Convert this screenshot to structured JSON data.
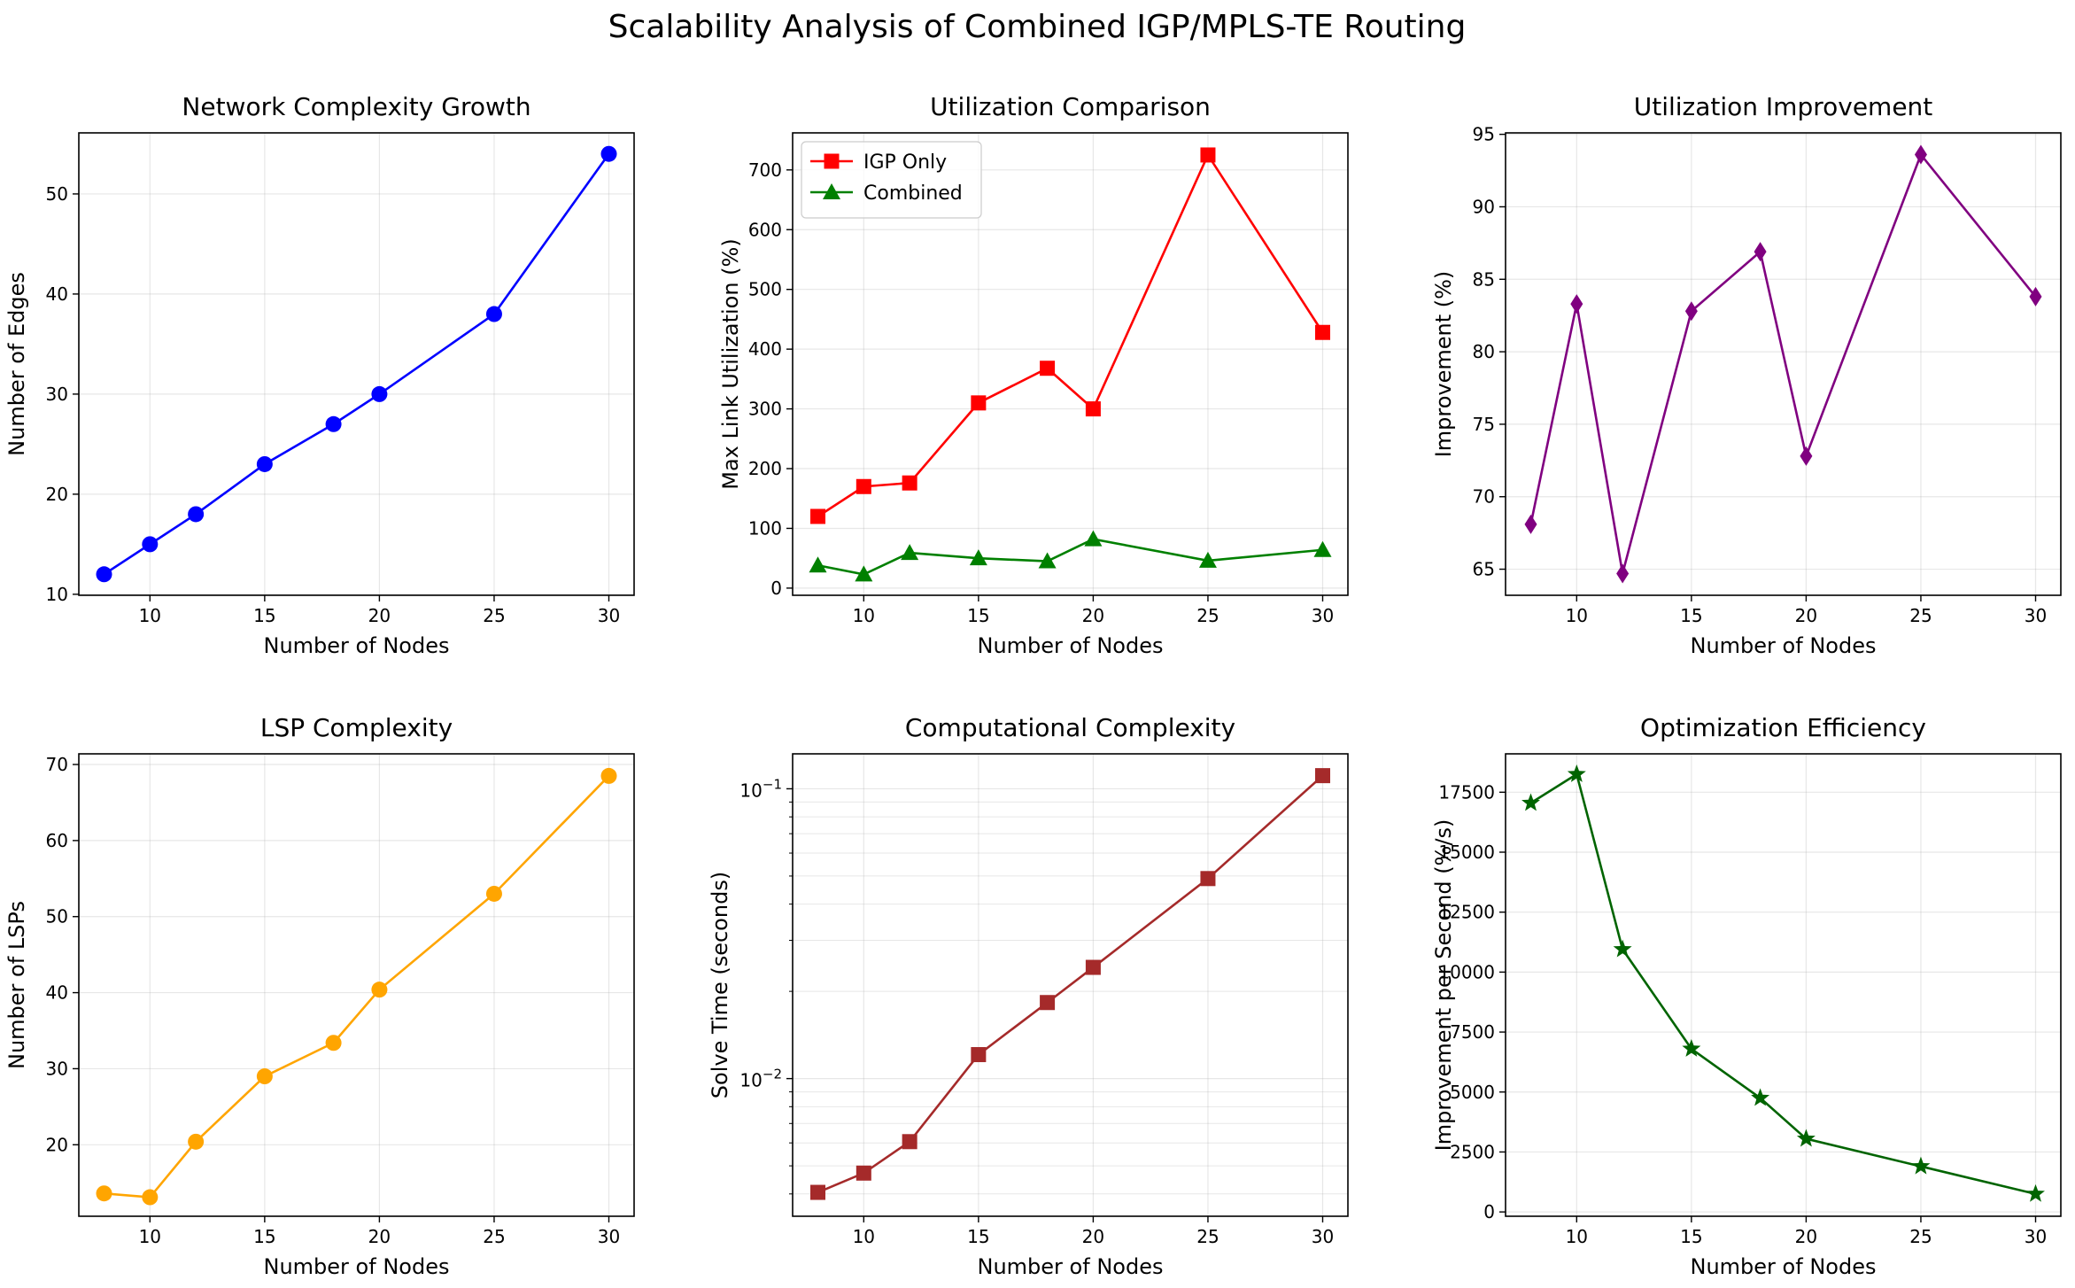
{
  "figure_title": "Scalability Analysis of Combined IGP/MPLS-TE Routing",
  "chart_data": [
    {
      "type": "line",
      "title": "Network Complexity Growth",
      "xlabel": "Number of Nodes",
      "ylabel": "Number of Edges",
      "x": [
        8,
        10,
        12,
        15,
        18,
        20,
        25,
        30
      ],
      "xlim": [
        6.9,
        31.1
      ],
      "xticks": [
        10,
        15,
        20,
        25,
        30
      ],
      "ylim": [
        9.9,
        56.1
      ],
      "yticks": [
        10,
        20,
        30,
        40,
        50
      ],
      "yscale": "linear",
      "grid": true,
      "series": [
        {
          "values": [
            12,
            15,
            18,
            23,
            27,
            30,
            38,
            54
          ],
          "color": "#0000ff",
          "marker": "circle"
        }
      ]
    },
    {
      "type": "line",
      "title": "Utilization Comparison",
      "xlabel": "Number of Nodes",
      "ylabel": "Max Link Utilization (%)",
      "x": [
        8,
        10,
        12,
        15,
        18,
        20,
        25,
        30
      ],
      "xlim": [
        6.9,
        31.1
      ],
      "xticks": [
        10,
        15,
        20,
        25,
        30
      ],
      "ylim": [
        -12,
        762
      ],
      "yticks": [
        0,
        100,
        200,
        300,
        400,
        500,
        600,
        700
      ],
      "yscale": "linear",
      "grid": true,
      "legend": "upper left",
      "series": [
        {
          "name": "IGP Only",
          "values": [
            120,
            170,
            176,
            310,
            368,
            300,
            725,
            428
          ],
          "color": "#ff0000",
          "marker": "square"
        },
        {
          "name": "Combined",
          "values": [
            38,
            23,
            59,
            50,
            45,
            82,
            46,
            64
          ],
          "color": "#008000",
          "marker": "triangle"
        }
      ]
    },
    {
      "type": "line",
      "title": "Utilization Improvement",
      "xlabel": "Number of Nodes",
      "ylabel": "Improvement (%)",
      "x": [
        8,
        10,
        12,
        15,
        18,
        20,
        25,
        30
      ],
      "xlim": [
        6.9,
        31.1
      ],
      "xticks": [
        10,
        15,
        20,
        25,
        30
      ],
      "ylim": [
        63.2,
        95.1
      ],
      "yticks": [
        65,
        70,
        75,
        80,
        85,
        90,
        95
      ],
      "yscale": "linear",
      "grid": true,
      "series": [
        {
          "values": [
            68.1,
            83.3,
            64.7,
            82.8,
            86.9,
            72.8,
            93.6,
            83.8
          ],
          "color": "#800080",
          "marker": "diamond"
        }
      ]
    },
    {
      "type": "line",
      "title": "LSP Complexity",
      "xlabel": "Number of Nodes",
      "ylabel": "Number of LSPs",
      "x": [
        8,
        10,
        12,
        15,
        18,
        20,
        25,
        30
      ],
      "xlim": [
        6.9,
        31.1
      ],
      "xticks": [
        10,
        15,
        20,
        25,
        30
      ],
      "ylim": [
        10.6,
        71.4
      ],
      "yticks": [
        20,
        30,
        40,
        50,
        60,
        70
      ],
      "yscale": "linear",
      "grid": true,
      "series": [
        {
          "values": [
            13.6,
            13.1,
            20.4,
            29.0,
            33.4,
            40.4,
            53.0,
            68.5
          ],
          "color": "#ffa500",
          "marker": "circle"
        }
      ]
    },
    {
      "type": "line",
      "title": "Computational Complexity",
      "xlabel": "Number of Nodes",
      "ylabel": "Solve Time (seconds)",
      "x": [
        8,
        10,
        12,
        15,
        18,
        20,
        25,
        30
      ],
      "xlim": [
        6.9,
        31.1
      ],
      "xticks": [
        10,
        15,
        20,
        25,
        30
      ],
      "ylim": [
        0.00335,
        0.132
      ],
      "yticks": [
        0.01,
        0.1
      ],
      "ytick_labels": [
        {
          "base": "10",
          "exp": "−2"
        },
        {
          "base": "10",
          "exp": "−1"
        }
      ],
      "yscale": "log",
      "grid": true,
      "series": [
        {
          "values": [
            0.00405,
            0.00472,
            0.00606,
            0.0121,
            0.0183,
            0.0242,
            0.049,
            0.111
          ],
          "color": "#a52a2a",
          "marker": "square"
        }
      ]
    },
    {
      "type": "line",
      "title": "Optimization Efficiency",
      "xlabel": "Number of Nodes",
      "ylabel": "Improvement per Second (%/s)",
      "x": [
        8,
        10,
        12,
        15,
        18,
        20,
        25,
        30
      ],
      "xlim": [
        6.9,
        31.1
      ],
      "xticks": [
        10,
        15,
        20,
        25,
        30
      ],
      "ylim": [
        -180,
        19100
      ],
      "yticks": [
        0,
        2500,
        5000,
        7500,
        10000,
        12500,
        15000,
        17500
      ],
      "yscale": "linear",
      "grid": true,
      "series": [
        {
          "values": [
            17050,
            18250,
            10950,
            6800,
            4750,
            3050,
            1900,
            750
          ],
          "color": "#006400",
          "marker": "star"
        }
      ]
    }
  ]
}
